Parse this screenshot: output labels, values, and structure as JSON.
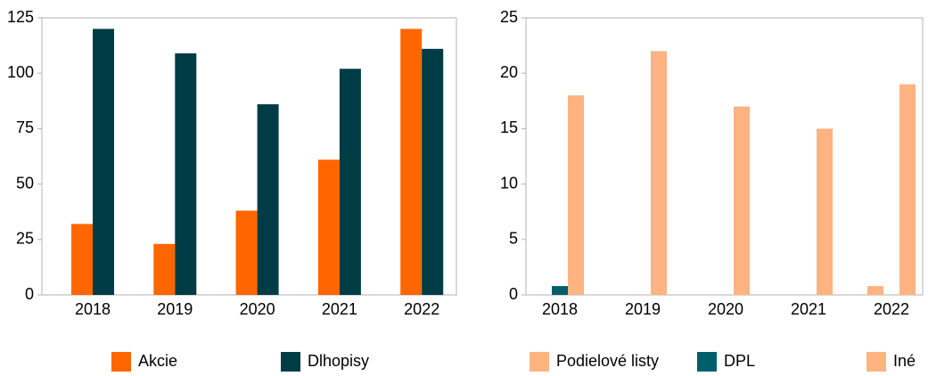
{
  "chart_data": [
    {
      "type": "bar",
      "categories": [
        "2018",
        "2019",
        "2020",
        "2021",
        "2022"
      ],
      "series": [
        {
          "name": "Akcie",
          "color": "#ff6600",
          "values": [
            32,
            23,
            38,
            61,
            120
          ]
        },
        {
          "name": "Dlhopisy",
          "color": "#003c46",
          "values": [
            120,
            109,
            86,
            102,
            111
          ]
        }
      ],
      "ylim": [
        0,
        125
      ],
      "yticks": [
        0,
        25,
        50,
        75,
        100,
        125
      ]
    },
    {
      "type": "bar",
      "categories": [
        "2018",
        "2019",
        "2020",
        "2021",
        "2022"
      ],
      "series": [
        {
          "name": "Podielové listy",
          "color": "#ffb380",
          "values": [
            0,
            0,
            0,
            0,
            0.8
          ]
        },
        {
          "name": "DPL",
          "color": "#005f6a",
          "values": [
            0.8,
            0,
            0,
            0,
            0
          ]
        },
        {
          "name": "Iné",
          "color": "#ffb380",
          "values": [
            18,
            22,
            17,
            15,
            19
          ]
        }
      ],
      "ylim": [
        0,
        25
      ],
      "yticks": [
        0,
        5,
        10,
        15,
        20,
        25
      ]
    }
  ]
}
